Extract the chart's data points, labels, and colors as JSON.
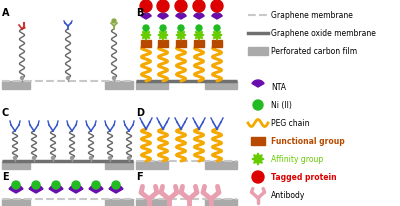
{
  "bg_color": "#ffffff",
  "gray_block": "#aaaaaa",
  "light_gray_line": "#c8c8c8",
  "dark_gray_line": "#707070",
  "peg_color": "#f5a800",
  "nta_color": "#6a0dad",
  "ni_color": "#22bb22",
  "func_color": "#b84a00",
  "affinity_color": "#66cc00",
  "protein_color": "#dd0000",
  "antibody_color": "#e8a0b0",
  "chain_color": "#666666",
  "carboxyl_color": "#cc3333",
  "amine_color": "#3355cc",
  "thiol_color": "#88aa44",
  "legend_line_colors": [
    "#c8c8c8",
    "#707070"
  ],
  "legend_line_lw": [
    1.5,
    2.5
  ],
  "legend_line_ls": [
    "--",
    "-"
  ],
  "legend_labels": [
    "Graphene membrane",
    "Graphene oxide membrane",
    "Perforated carbon film",
    "NTA",
    "Ni (II)",
    "PEG chain",
    "Functional group",
    "Affinity group",
    "Tagged protein",
    "Antibody"
  ],
  "bold_labels": [
    "Functional group",
    "Affinity group",
    "Tagged protein",
    "Antibody"
  ],
  "label_fontsize": 5.5,
  "panel_label_fontsize": 7
}
